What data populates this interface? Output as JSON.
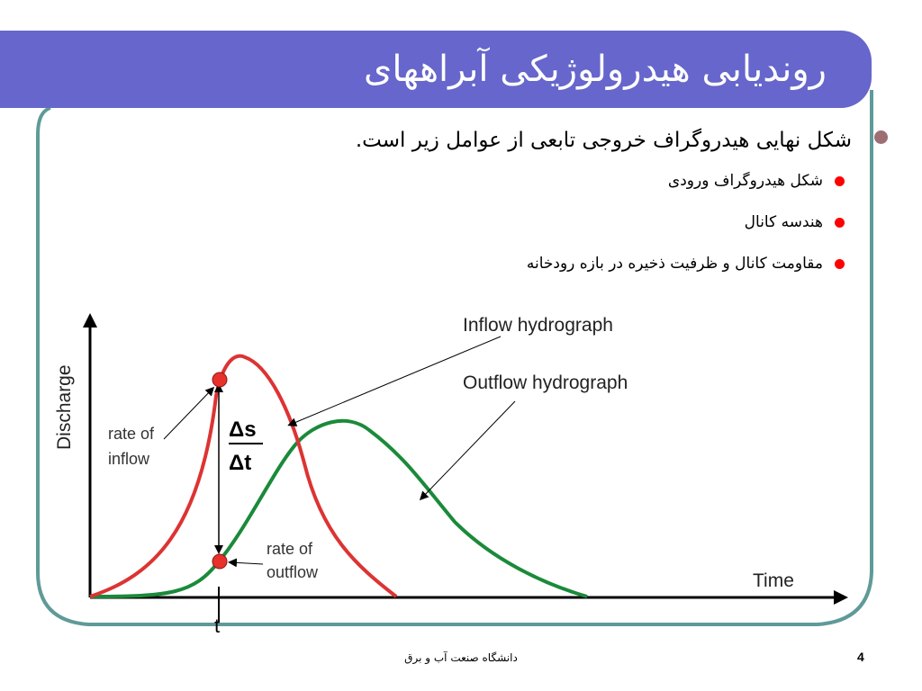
{
  "slide": {
    "title": "روندیابی هیدرولوژیکی آبراههای",
    "bullet_main": "شکل نهایی هیدروگراف خروجی تابعی از عوامل زیر است.",
    "sub_bullets": [
      "شکل هیدروگراف ورودی",
      "هندسه کانال",
      "مقاومت کانال و ظرفیت ذخیره در بازه رودخانه"
    ],
    "footer": "دانشگاه صنعت آب و برق",
    "page_number": "4"
  },
  "diagram": {
    "y_axis_label": "Discharge",
    "x_axis_label": "Time",
    "inflow_label": "Inflow hydrograph",
    "outflow_label": "Outflow hydrograph",
    "rate_inflow": [
      "rate of",
      "inflow"
    ],
    "rate_outflow": [
      "rate of",
      "outflow"
    ],
    "ds": "Δs",
    "dt": "Δt",
    "t_label": "t",
    "colors": {
      "inflow": "#dd3333",
      "outflow": "#1a8a3a",
      "title_bar": "#6666cc",
      "frame": "#5f9a98",
      "point": "#e8312b"
    }
  }
}
